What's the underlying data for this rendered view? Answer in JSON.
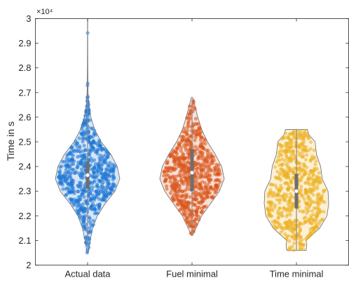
{
  "chart_data": {
    "type": "violin",
    "title": "",
    "xlabel": "",
    "ylabel": "Time in s",
    "y_exponent_label": "×10⁴",
    "y_scale_factor": 10000,
    "ylim": [
      2.0,
      3.0
    ],
    "yticks": [
      "2",
      "2.1",
      "2.2",
      "2.3",
      "2.4",
      "2.5",
      "2.6",
      "2.7",
      "2.8",
      "2.9",
      "3"
    ],
    "grid": false,
    "legend": "none",
    "categories": [
      "Actual data",
      "Fuel minimal",
      "Time minimal"
    ],
    "series": [
      {
        "color": "#1f77d4",
        "median": 2.365,
        "q1": 2.31,
        "q3": 2.42,
        "whisker_low": 2.08,
        "whisker_high": 2.99,
        "min": 2.05,
        "max": 3.0,
        "density": [
          [
            2.05,
            0.02
          ],
          [
            2.1,
            0.08
          ],
          [
            2.15,
            0.16
          ],
          [
            2.2,
            0.3
          ],
          [
            2.25,
            0.55
          ],
          [
            2.3,
            0.85
          ],
          [
            2.35,
            1.0
          ],
          [
            2.4,
            0.92
          ],
          [
            2.45,
            0.72
          ],
          [
            2.5,
            0.42
          ],
          [
            2.55,
            0.22
          ],
          [
            2.6,
            0.1
          ],
          [
            2.65,
            0.04
          ],
          [
            2.7,
            0.015
          ],
          [
            2.8,
            0.008
          ],
          [
            2.9,
            0.005
          ],
          [
            3.0,
            0.003
          ]
        ]
      },
      {
        "color": "#d95319",
        "median": 2.375,
        "q1": 2.3,
        "q3": 2.47,
        "whisker_low": 2.13,
        "whisker_high": 2.67,
        "min": 2.12,
        "max": 2.68,
        "density": [
          [
            2.12,
            0.02
          ],
          [
            2.15,
            0.12
          ],
          [
            2.2,
            0.3
          ],
          [
            2.25,
            0.58
          ],
          [
            2.3,
            0.85
          ],
          [
            2.35,
            1.0
          ],
          [
            2.4,
            0.92
          ],
          [
            2.45,
            0.72
          ],
          [
            2.5,
            0.48
          ],
          [
            2.55,
            0.3
          ],
          [
            2.6,
            0.18
          ],
          [
            2.65,
            0.08
          ],
          [
            2.68,
            0.02
          ]
        ]
      },
      {
        "color": "#edb120",
        "median": 2.3,
        "q1": 2.23,
        "q3": 2.37,
        "whisker_low": 2.06,
        "whisker_high": 2.55,
        "min": 2.06,
        "max": 2.55,
        "density": [
          [
            2.06,
            0.3
          ],
          [
            2.08,
            0.32
          ],
          [
            2.1,
            0.3
          ],
          [
            2.15,
            0.72
          ],
          [
            2.2,
            0.95
          ],
          [
            2.25,
            1.0
          ],
          [
            2.3,
            0.98
          ],
          [
            2.35,
            0.8
          ],
          [
            2.4,
            0.75
          ],
          [
            2.45,
            0.62
          ],
          [
            2.5,
            0.58
          ],
          [
            2.53,
            0.38
          ],
          [
            2.55,
            0.34
          ]
        ]
      }
    ]
  }
}
